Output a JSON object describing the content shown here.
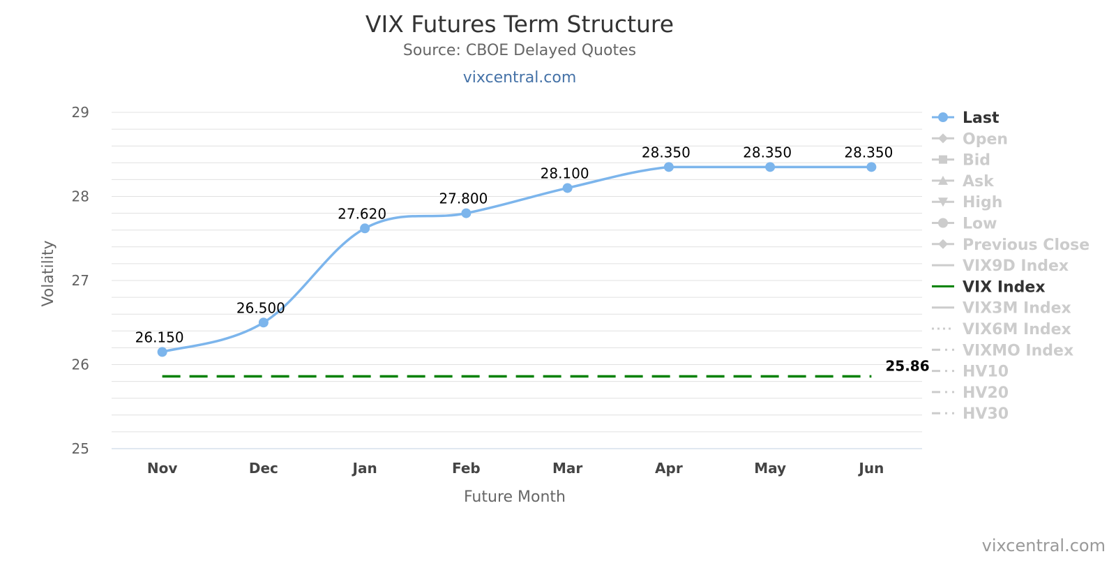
{
  "chart_data": {
    "type": "line",
    "title": "VIX Futures Term Structure",
    "subtitle": "Source: CBOE Delayed Quotes",
    "subtitle_link": "vixcentral.com",
    "xlabel": "Future Month",
    "ylabel": "Volatility",
    "ylim": [
      25,
      29
    ],
    "yticks": [
      "25",
      "26",
      "27",
      "28",
      "29"
    ],
    "categories": [
      "Nov",
      "Dec",
      "Jan",
      "Feb",
      "Mar",
      "Apr",
      "May",
      "Jun"
    ],
    "grid": true,
    "legend_position": "right",
    "series": [
      {
        "name": "Last",
        "values": [
          26.15,
          26.5,
          27.62,
          27.8,
          28.1,
          28.35,
          28.35,
          28.35
        ],
        "labels": [
          "26.150",
          "26.500",
          "27.620",
          "27.800",
          "28.100",
          "28.350",
          "28.350",
          "28.350"
        ],
        "color": "#7CB5EC",
        "visible": true
      },
      {
        "name": "VIX Index",
        "values": [
          25.86,
          25.86,
          25.86,
          25.86,
          25.86,
          25.86,
          25.86,
          25.86
        ],
        "end_label": "25.86",
        "color": "#008000",
        "style": "dashed",
        "visible": true
      }
    ],
    "legend": [
      {
        "name": "Last",
        "symbol": "circle",
        "line": "solid",
        "active": true,
        "color": "#7CB5EC"
      },
      {
        "name": "Open",
        "symbol": "diamond",
        "line": "solid",
        "active": false
      },
      {
        "name": "Bid",
        "symbol": "square",
        "line": "solid",
        "active": false
      },
      {
        "name": "Ask",
        "symbol": "triangle",
        "line": "solid",
        "active": false
      },
      {
        "name": "High",
        "symbol": "triangle-down",
        "line": "solid",
        "active": false
      },
      {
        "name": "Low",
        "symbol": "circle",
        "line": "solid",
        "active": false
      },
      {
        "name": "Previous Close",
        "symbol": "diamond",
        "line": "solid",
        "active": false
      },
      {
        "name": "VIX9D Index",
        "symbol": "none",
        "line": "solid",
        "active": false
      },
      {
        "name": "VIX Index",
        "symbol": "none",
        "line": "solid",
        "active": true,
        "color": "#008000"
      },
      {
        "name": "VIX3M Index",
        "symbol": "none",
        "line": "solid",
        "active": false
      },
      {
        "name": "VIX6M Index",
        "symbol": "none",
        "line": "dotted",
        "active": false
      },
      {
        "name": "VIXMO Index",
        "symbol": "none",
        "line": "dashdot",
        "active": false
      },
      {
        "name": "HV10",
        "symbol": "none",
        "line": "dashdot",
        "active": false
      },
      {
        "name": "HV20",
        "symbol": "none",
        "line": "dashdot",
        "active": false
      },
      {
        "name": "HV30",
        "symbol": "none",
        "line": "dashdot",
        "active": false
      }
    ]
  },
  "credit": "vixcentral.com",
  "colors": {
    "inactive_legend": "#CCCCCC",
    "active_legend_text": "#333333",
    "grid": "#E0E0E0",
    "axis": "#C0D0E0"
  }
}
